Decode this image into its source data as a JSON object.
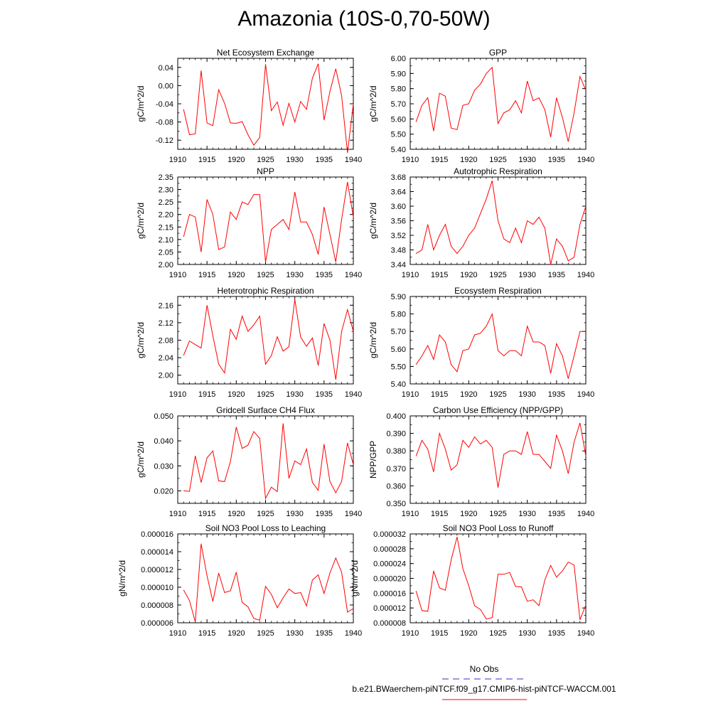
{
  "figure": {
    "title": "Amazonia (10S-0,70-50W)",
    "legend": {
      "obs_label": "No Obs",
      "obs_color": "#3333bb",
      "case_label": "b.e21.BWaerchem-piNTCF.f09_g17.CMIP6-hist-piNTCF-WACCM.001",
      "case_color": "#ff0000"
    }
  },
  "chart_data": [
    {
      "type": "line",
      "title": "Net Ecosystem Exchange",
      "ylabel": "gC/m^2/d",
      "xlabel": "",
      "xlim": [
        1910,
        1940
      ],
      "ylim": [
        -0.14,
        0.06
      ],
      "xticks": [
        "1910",
        "1915",
        "1920",
        "1925",
        "1930",
        "1935",
        "1940"
      ],
      "yticks": [
        "-0.12",
        "-0.08",
        "-0.04",
        "0.00",
        "0.04"
      ],
      "yticks_values": [
        -0.12,
        -0.08,
        -0.04,
        0.0,
        0.04
      ],
      "x": [
        1911,
        1912,
        1913,
        1914,
        1915,
        1916,
        1917,
        1918,
        1919,
        1920,
        1921,
        1922,
        1923,
        1924,
        1925,
        1926,
        1927,
        1928,
        1929,
        1930,
        1931,
        1932,
        1933,
        1934,
        1935,
        1936,
        1937,
        1938,
        1939,
        1940
      ],
      "series": [
        {
          "values": [
            -0.052,
            -0.108,
            -0.106,
            0.033,
            -0.082,
            -0.088,
            -0.009,
            -0.039,
            -0.082,
            -0.083,
            -0.079,
            -0.108,
            -0.131,
            -0.114,
            0.047,
            -0.055,
            -0.036,
            -0.087,
            -0.039,
            -0.08,
            -0.035,
            -0.052,
            0.016,
            0.048,
            -0.076,
            -0.013,
            0.037,
            -0.022,
            -0.148,
            -0.04
          ],
          "color": "#ff0000"
        }
      ]
    },
    {
      "type": "line",
      "title": "GPP",
      "ylabel": "gC/m^2/d",
      "xlabel": "",
      "xlim": [
        1910,
        1940
      ],
      "ylim": [
        5.4,
        6.0
      ],
      "xticks": [
        "1910",
        "1915",
        "1920",
        "1925",
        "1930",
        "1935",
        "1940"
      ],
      "yticks": [
        "5.40",
        "5.50",
        "5.60",
        "5.70",
        "5.80",
        "5.90",
        "6.00"
      ],
      "yticks_values": [
        5.4,
        5.5,
        5.6,
        5.7,
        5.8,
        5.9,
        6.0
      ],
      "x": [
        1911,
        1912,
        1913,
        1914,
        1915,
        1916,
        1917,
        1918,
        1919,
        1920,
        1921,
        1922,
        1923,
        1924,
        1925,
        1926,
        1927,
        1928,
        1929,
        1930,
        1931,
        1932,
        1933,
        1934,
        1935,
        1936,
        1937,
        1938,
        1939,
        1940
      ],
      "series": [
        {
          "values": [
            5.58,
            5.69,
            5.74,
            5.52,
            5.77,
            5.75,
            5.54,
            5.53,
            5.69,
            5.7,
            5.79,
            5.83,
            5.9,
            5.94,
            5.57,
            5.64,
            5.66,
            5.72,
            5.64,
            5.85,
            5.72,
            5.74,
            5.66,
            5.48,
            5.74,
            5.61,
            5.45,
            5.64,
            5.88,
            5.79
          ],
          "color": "#ff0000"
        }
      ]
    },
    {
      "type": "line",
      "title": "NPP",
      "ylabel": "gC/m^2/d",
      "xlabel": "",
      "xlim": [
        1910,
        1940
      ],
      "ylim": [
        2.0,
        2.35
      ],
      "xticks": [
        "1910",
        "1915",
        "1920",
        "1925",
        "1930",
        "1935",
        "1940"
      ],
      "yticks": [
        "2.00",
        "2.05",
        "2.10",
        "2.15",
        "2.20",
        "2.25",
        "2.30",
        "2.35"
      ],
      "yticks_values": [
        2.0,
        2.05,
        2.1,
        2.15,
        2.2,
        2.25,
        2.3,
        2.35
      ],
      "x": [
        1911,
        1912,
        1913,
        1914,
        1915,
        1916,
        1917,
        1918,
        1919,
        1920,
        1921,
        1922,
        1923,
        1924,
        1925,
        1926,
        1927,
        1928,
        1929,
        1930,
        1931,
        1932,
        1933,
        1934,
        1935,
        1936,
        1937,
        1938,
        1939,
        1940
      ],
      "series": [
        {
          "values": [
            2.11,
            2.2,
            2.19,
            2.05,
            2.26,
            2.2,
            2.06,
            2.07,
            2.21,
            2.18,
            2.25,
            2.24,
            2.28,
            2.28,
            2.01,
            2.14,
            2.16,
            2.18,
            2.14,
            2.29,
            2.17,
            2.17,
            2.12,
            2.04,
            2.23,
            2.12,
            2.01,
            2.18,
            2.33,
            2.19
          ],
          "color": "#ff0000"
        }
      ]
    },
    {
      "type": "line",
      "title": "Autotrophic Respiration",
      "ylabel": "gC/m^2/d",
      "xlabel": "",
      "xlim": [
        1910,
        1940
      ],
      "ylim": [
        3.44,
        3.68
      ],
      "xticks": [
        "1910",
        "1915",
        "1920",
        "1925",
        "1930",
        "1935",
        "1940"
      ],
      "yticks": [
        "3.44",
        "3.48",
        "3.52",
        "3.56",
        "3.60",
        "3.64",
        "3.68"
      ],
      "yticks_values": [
        3.44,
        3.48,
        3.52,
        3.56,
        3.6,
        3.64,
        3.68
      ],
      "x": [
        1911,
        1912,
        1913,
        1914,
        1915,
        1916,
        1917,
        1918,
        1919,
        1920,
        1921,
        1922,
        1923,
        1924,
        1925,
        1926,
        1927,
        1928,
        1929,
        1930,
        1931,
        1932,
        1933,
        1934,
        1935,
        1936,
        1937,
        1938,
        1939,
        1940
      ],
      "series": [
        {
          "values": [
            3.47,
            3.48,
            3.55,
            3.48,
            3.52,
            3.55,
            3.49,
            3.47,
            3.49,
            3.52,
            3.54,
            3.58,
            3.62,
            3.67,
            3.56,
            3.51,
            3.5,
            3.54,
            3.5,
            3.56,
            3.55,
            3.57,
            3.54,
            3.44,
            3.51,
            3.49,
            3.45,
            3.46,
            3.55,
            3.6
          ],
          "color": "#ff0000"
        }
      ]
    },
    {
      "type": "line",
      "title": "Heterotrophic Respiration",
      "ylabel": "gC/m^2/d",
      "xlabel": "",
      "xlim": [
        1910,
        1940
      ],
      "ylim": [
        1.98,
        2.18
      ],
      "xticks": [
        "1910",
        "1915",
        "1920",
        "1925",
        "1930",
        "1935",
        "1940"
      ],
      "yticks": [
        "2.00",
        "2.04",
        "2.08",
        "2.12",
        "2.16"
      ],
      "yticks_values": [
        2.0,
        2.04,
        2.08,
        2.12,
        2.16
      ],
      "x": [
        1911,
        1912,
        1913,
        1914,
        1915,
        1916,
        1917,
        1918,
        1919,
        1920,
        1921,
        1922,
        1923,
        1924,
        1925,
        1926,
        1927,
        1928,
        1929,
        1930,
        1931,
        1932,
        1933,
        1934,
        1935,
        1936,
        1937,
        1938,
        1939,
        1940
      ],
      "series": [
        {
          "values": [
            2.045,
            2.078,
            2.07,
            2.062,
            2.16,
            2.09,
            2.025,
            2.005,
            2.105,
            2.082,
            2.135,
            2.1,
            2.115,
            2.135,
            2.025,
            2.045,
            2.088,
            2.055,
            2.065,
            2.173,
            2.087,
            2.066,
            2.085,
            2.022,
            2.118,
            2.08,
            1.99,
            2.1,
            2.15,
            2.1
          ],
          "color": "#ff0000"
        }
      ]
    },
    {
      "type": "line",
      "title": "Ecosystem Respiration",
      "ylabel": "gC/m^2/d",
      "xlabel": "",
      "xlim": [
        1910,
        1940
      ],
      "ylim": [
        5.4,
        5.9
      ],
      "xticks": [
        "1910",
        "1915",
        "1920",
        "1925",
        "1930",
        "1935",
        "1940"
      ],
      "yticks": [
        "5.40",
        "5.50",
        "5.60",
        "5.70",
        "5.80",
        "5.90"
      ],
      "yticks_values": [
        5.4,
        5.5,
        5.6,
        5.7,
        5.8,
        5.9
      ],
      "x": [
        1911,
        1912,
        1913,
        1914,
        1915,
        1916,
        1917,
        1918,
        1919,
        1920,
        1921,
        1922,
        1923,
        1924,
        1925,
        1926,
        1927,
        1928,
        1929,
        1930,
        1931,
        1932,
        1933,
        1934,
        1935,
        1936,
        1937,
        1938,
        1939,
        1940
      ],
      "series": [
        {
          "values": [
            5.51,
            5.56,
            5.62,
            5.54,
            5.68,
            5.64,
            5.51,
            5.47,
            5.59,
            5.6,
            5.68,
            5.69,
            5.73,
            5.8,
            5.59,
            5.56,
            5.59,
            5.59,
            5.56,
            5.73,
            5.64,
            5.64,
            5.62,
            5.46,
            5.63,
            5.56,
            5.43,
            5.56,
            5.7,
            5.7
          ],
          "color": "#ff0000"
        }
      ]
    },
    {
      "type": "line",
      "title": "Gridcell Surface CH4 Flux",
      "ylabel": "gC/m^2/d",
      "xlabel": "",
      "xlim": [
        1910,
        1940
      ],
      "ylim": [
        0.015,
        0.05
      ],
      "xticks": [
        "1910",
        "1915",
        "1920",
        "1925",
        "1930",
        "1935",
        "1940"
      ],
      "yticks": [
        "0.020",
        "0.030",
        "0.040",
        "0.050"
      ],
      "yticks_values": [
        0.02,
        0.03,
        0.04,
        0.05
      ],
      "x": [
        1911,
        1912,
        1913,
        1914,
        1915,
        1916,
        1917,
        1918,
        1919,
        1920,
        1921,
        1922,
        1923,
        1924,
        1925,
        1926,
        1927,
        1928,
        1929,
        1930,
        1931,
        1932,
        1933,
        1934,
        1935,
        1936,
        1937,
        1938,
        1939,
        1940
      ],
      "series": [
        {
          "values": [
            0.02,
            0.0198,
            0.034,
            0.0233,
            0.0332,
            0.036,
            0.024,
            0.0237,
            0.0317,
            0.0455,
            0.037,
            0.0383,
            0.0437,
            0.041,
            0.017,
            0.0215,
            0.0197,
            0.047,
            0.025,
            0.032,
            0.0305,
            0.0368,
            0.0234,
            0.0202,
            0.0387,
            0.0237,
            0.0192,
            0.0238,
            0.0392,
            0.0305
          ],
          "color": "#ff0000"
        }
      ]
    },
    {
      "type": "line",
      "title": "Carbon Use Efficiency (NPP/GPP)",
      "ylabel": "NPP/GPP",
      "xlabel": "",
      "xlim": [
        1910,
        1940
      ],
      "ylim": [
        0.35,
        0.4
      ],
      "xticks": [
        "1910",
        "1915",
        "1920",
        "1925",
        "1930",
        "1935",
        "1940"
      ],
      "yticks": [
        "0.350",
        "0.360",
        "0.370",
        "0.380",
        "0.390",
        "0.400"
      ],
      "yticks_values": [
        0.35,
        0.36,
        0.37,
        0.38,
        0.39,
        0.4
      ],
      "x": [
        1911,
        1912,
        1913,
        1914,
        1915,
        1916,
        1917,
        1918,
        1919,
        1920,
        1921,
        1922,
        1923,
        1924,
        1925,
        1926,
        1927,
        1928,
        1929,
        1930,
        1931,
        1932,
        1933,
        1934,
        1935,
        1936,
        1937,
        1938,
        1939,
        1940
      ],
      "series": [
        {
          "values": [
            0.377,
            0.386,
            0.381,
            0.368,
            0.39,
            0.381,
            0.369,
            0.372,
            0.386,
            0.382,
            0.388,
            0.384,
            0.386,
            0.382,
            0.359,
            0.378,
            0.38,
            0.38,
            0.378,
            0.391,
            0.378,
            0.378,
            0.374,
            0.37,
            0.389,
            0.38,
            0.367,
            0.385,
            0.396,
            0.377
          ],
          "color": "#ff0000"
        }
      ]
    },
    {
      "type": "line",
      "title": "Soil NO3 Pool Loss to Leaching",
      "ylabel": "gN/m^2/d",
      "xlabel": "",
      "xlim": [
        1910,
        1940
      ],
      "ylim": [
        6e-06,
        1.6e-05
      ],
      "xticks": [
        "1910",
        "1915",
        "1920",
        "1925",
        "1930",
        "1935",
        "1940"
      ],
      "yticks": [
        "0.000006",
        "0.000008",
        "0.000010",
        "0.000012",
        "0.000014",
        "0.000016"
      ],
      "yticks_values": [
        6e-06,
        8e-06,
        1e-05,
        1.2e-05,
        1.4e-05,
        1.6e-05
      ],
      "x": [
        1911,
        1912,
        1913,
        1914,
        1915,
        1916,
        1917,
        1918,
        1919,
        1920,
        1921,
        1922,
        1923,
        1924,
        1925,
        1926,
        1927,
        1928,
        1929,
        1930,
        1931,
        1932,
        1933,
        1934,
        1935,
        1936,
        1937,
        1938,
        1939,
        1940
      ],
      "series": [
        {
          "values": [
            9.7e-06,
            8.5e-06,
            6.1e-06,
            1.49e-05,
            1.13e-05,
            8.4e-06,
            1.16e-05,
            9.4e-06,
            9.6e-06,
            1.17e-05,
            8.3e-06,
            7.8e-06,
            6.5e-06,
            6.3e-06,
            1.01e-05,
            9.2e-06,
            7.7e-06,
            8.8e-06,
            9.8e-06,
            9.3e-06,
            9.4e-06,
            7.9e-06,
            1.08e-05,
            1.14e-05,
            9.3e-06,
            1.16e-05,
            1.33e-05,
            1.17e-05,
            7.2e-06,
            7.6e-06
          ],
          "color": "#ff0000"
        }
      ]
    },
    {
      "type": "line",
      "title": "Soil NO3 Pool Loss to Runoff",
      "ylabel": "gN/m^2/d",
      "xlabel": "",
      "xlim": [
        1910,
        1940
      ],
      "ylim": [
        8e-06,
        3.2e-05
      ],
      "xticks": [
        "1910",
        "1915",
        "1920",
        "1925",
        "1930",
        "1935",
        "1940"
      ],
      "yticks": [
        "0.000008",
        "0.000012",
        "0.000016",
        "0.000020",
        "0.000024",
        "0.000028",
        "0.000032"
      ],
      "yticks_values": [
        8e-06,
        1.2e-05,
        1.6e-05,
        2e-05,
        2.4e-05,
        2.8e-05,
        3.2e-05
      ],
      "x": [
        1911,
        1912,
        1913,
        1914,
        1915,
        1916,
        1917,
        1918,
        1919,
        1920,
        1921,
        1922,
        1923,
        1924,
        1925,
        1926,
        1927,
        1928,
        1929,
        1930,
        1931,
        1932,
        1933,
        1934,
        1935,
        1936,
        1937,
        1938,
        1939,
        1940
      ],
      "series": [
        {
          "values": [
            1.66e-05,
            1.13e-05,
            1.11e-05,
            2.2e-05,
            1.74e-05,
            1.68e-05,
            2.5e-05,
            3.12e-05,
            2.26e-05,
            1.8e-05,
            1.26e-05,
            1.16e-05,
            9e-06,
            9.4e-06,
            2.11e-05,
            2.11e-05,
            2.16e-05,
            1.78e-05,
            1.77e-05,
            1.38e-05,
            1.42e-05,
            1.26e-05,
            1.96e-05,
            2.35e-05,
            2.03e-05,
            2.2e-05,
            2.44e-05,
            2.36e-05,
            8.8e-06,
            1.28e-05
          ],
          "color": "#ff0000"
        }
      ]
    }
  ]
}
